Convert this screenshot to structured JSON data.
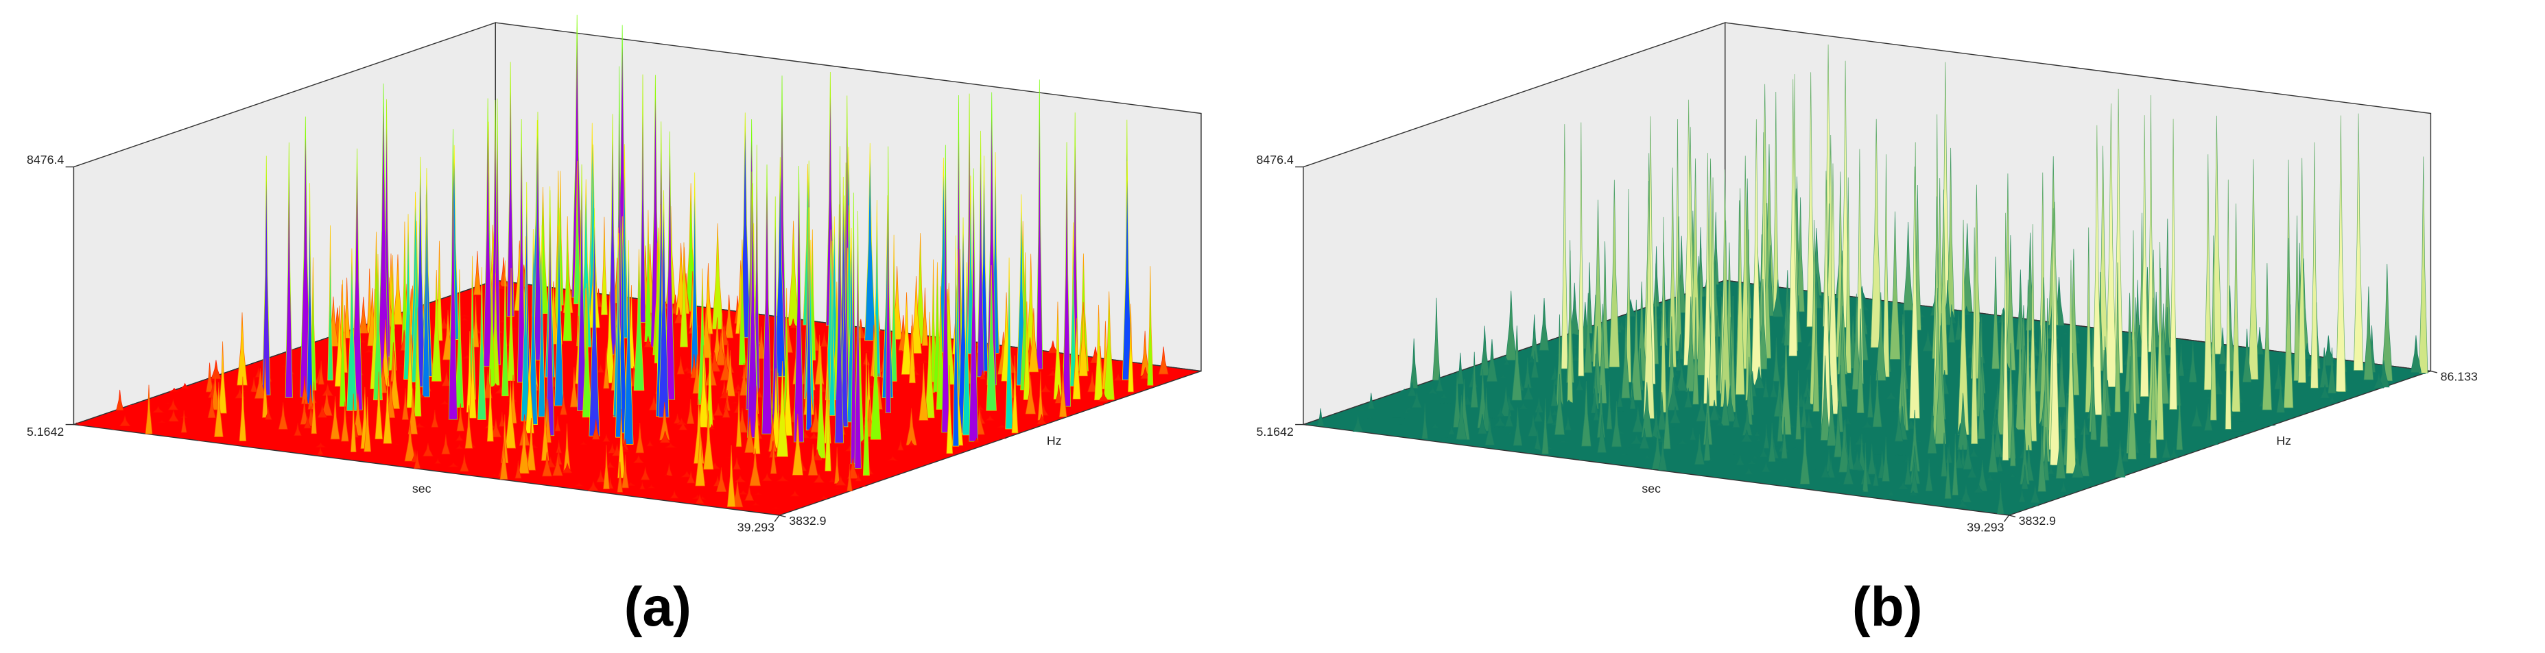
{
  "chart_data": [
    {
      "type": "surface3d",
      "caption": "(a)",
      "xlabel": "sec",
      "ylabel": "Hz",
      "zlim": [
        5.1642,
        8476.4
      ],
      "zticks": [
        5.1642,
        8476.4
      ],
      "xticks": [
        39.293
      ],
      "yticks": [
        3832.9
      ],
      "colormap": [
        "#ff0000",
        "#ff8a00",
        "#ffee00",
        "#7cff00",
        "#00e0c0",
        "#0050ff",
        "#a000e0"
      ]
    },
    {
      "type": "surface3d",
      "caption": "(b)",
      "xlabel": "sec",
      "ylabel": "Hz",
      "zlim": [
        5.1642,
        8476.4
      ],
      "zticks": [
        5.1642,
        8476.4
      ],
      "xticks": [
        39.293
      ],
      "yticks": [
        3832.9,
        86.133
      ],
      "ylim": [
        3832.9,
        86.133
      ],
      "colormap": [
        "#0e7a62",
        "#2f8f62",
        "#5aa866",
        "#8cc46c",
        "#c8e27e",
        "#f2f7a8"
      ]
    }
  ]
}
